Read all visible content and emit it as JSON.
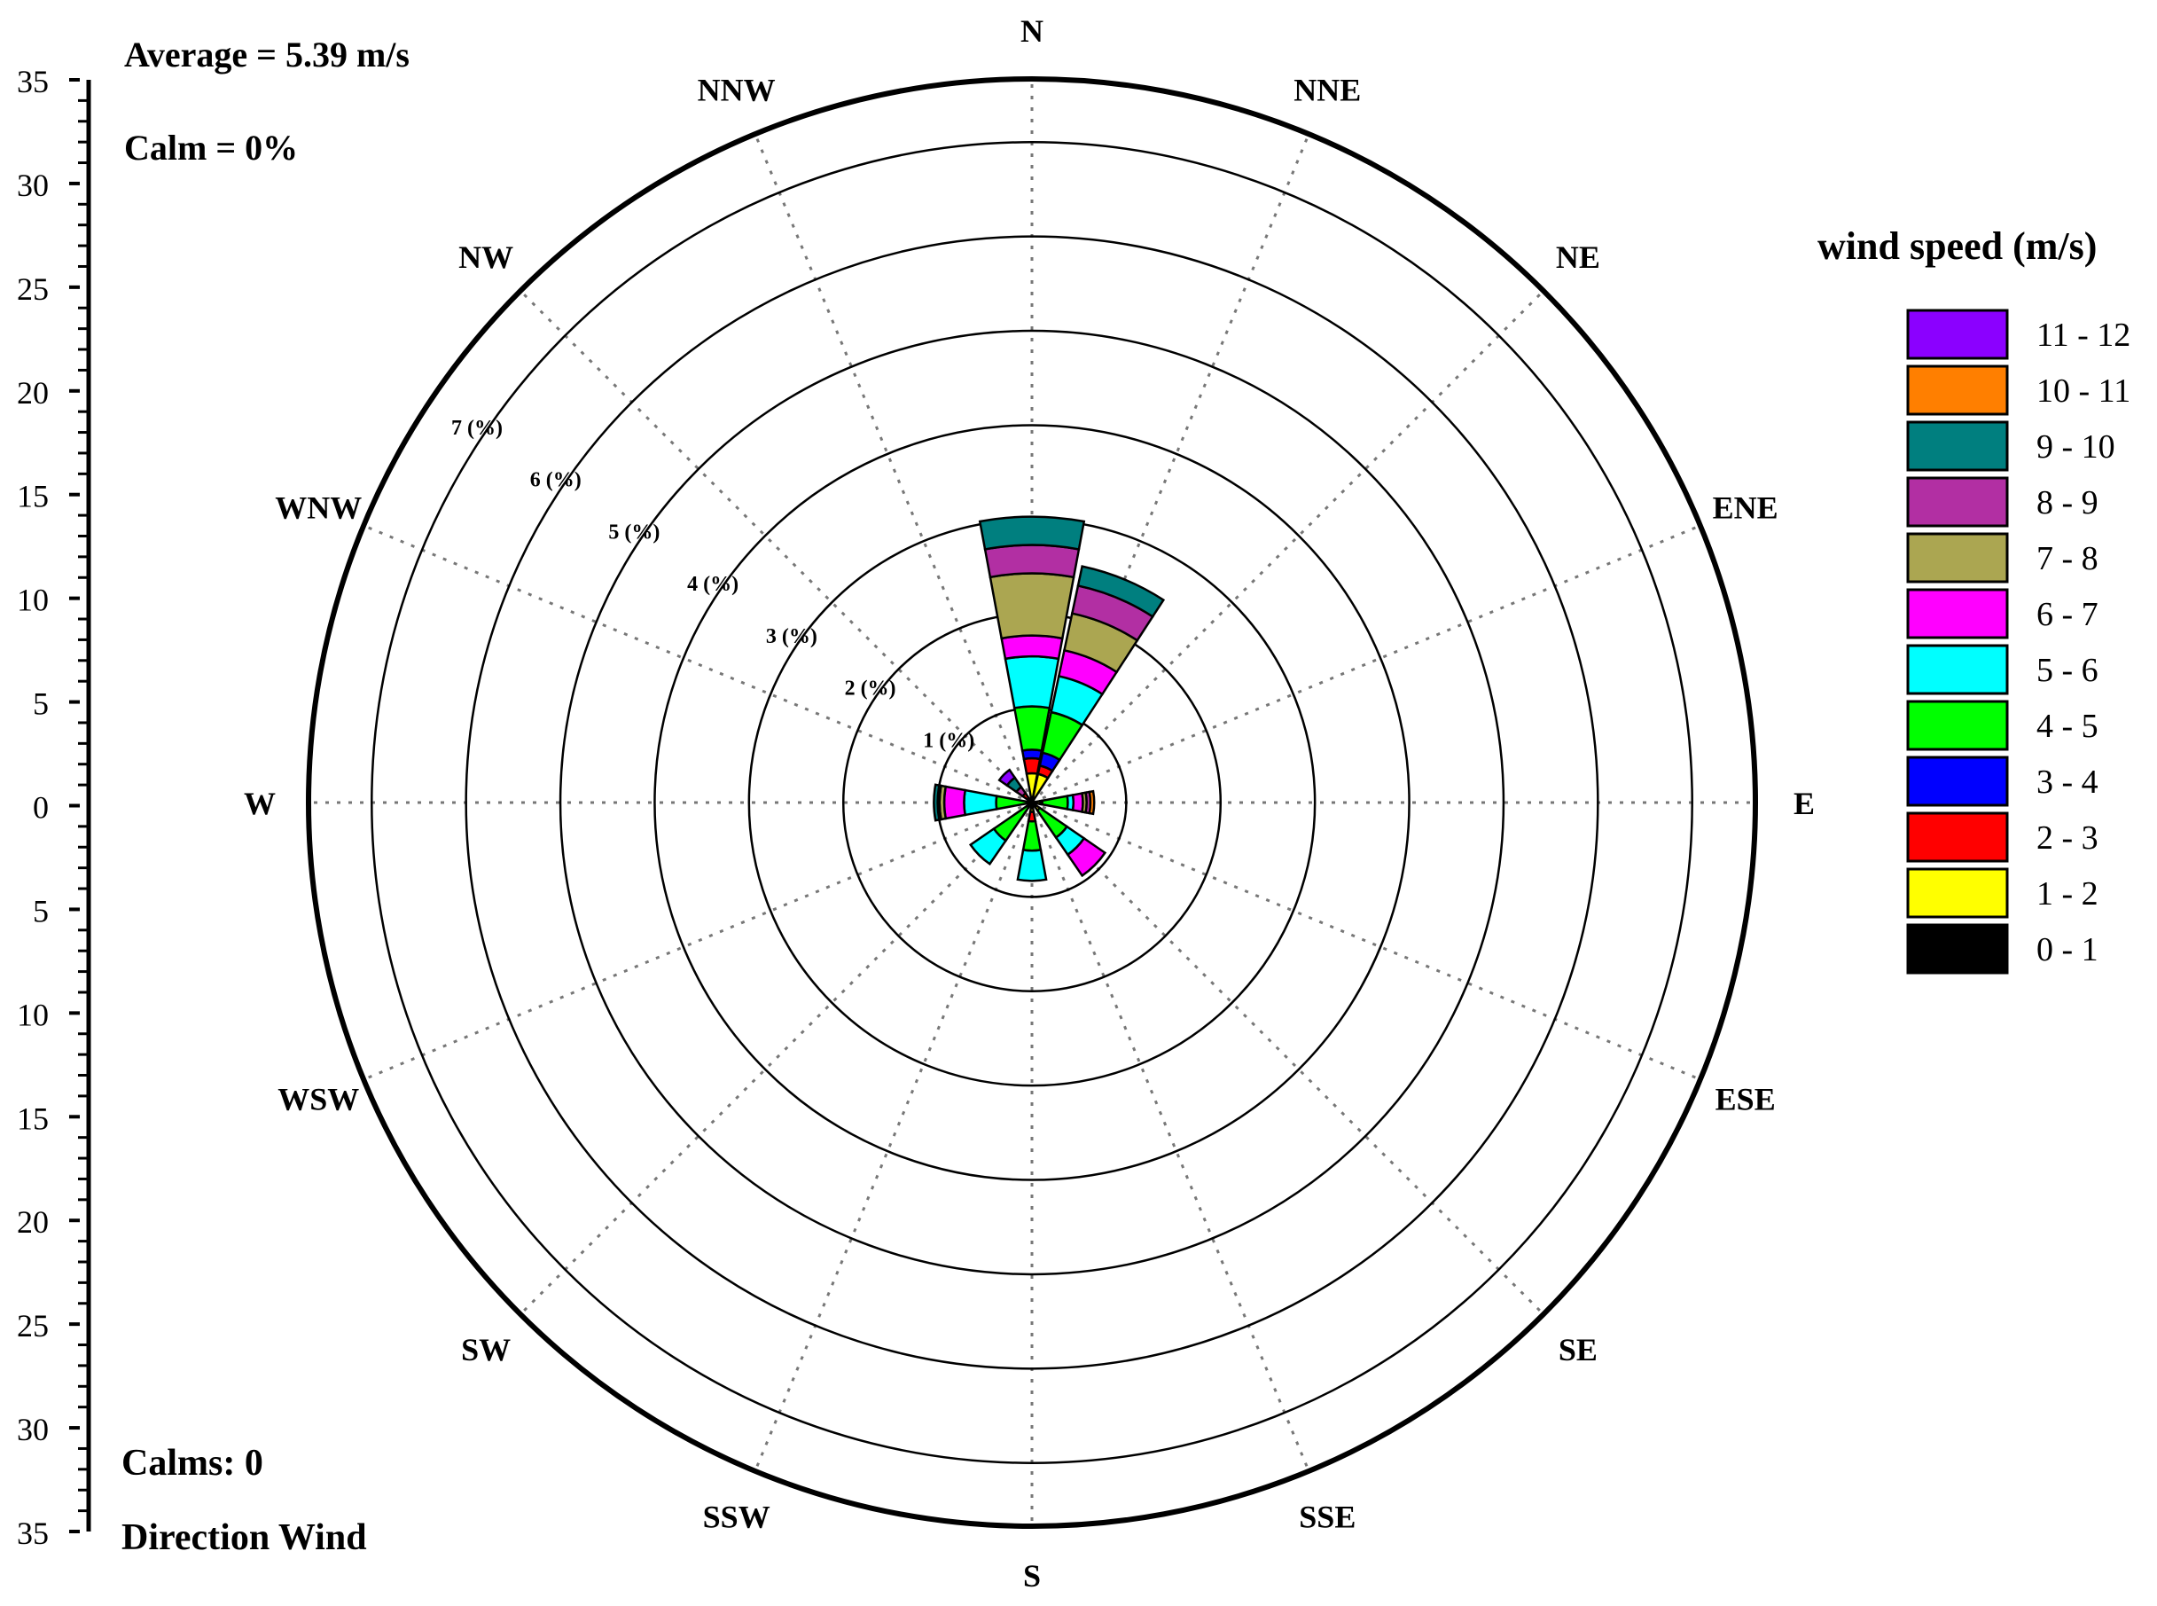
{
  "chart_data": {
    "type": "windrose",
    "info": {
      "average": "Average = 5.39 m/s",
      "calm": "Calm = 0%",
      "calms": "Calms: 0",
      "direction_label": "Direction Wind"
    },
    "directions": [
      "N",
      "NNE",
      "NE",
      "ENE",
      "E",
      "ESE",
      "SE",
      "SSE",
      "S",
      "SSW",
      "SW",
      "WSW",
      "W",
      "WNW",
      "NW",
      "NNW"
    ],
    "rings": [
      1,
      2,
      3,
      4,
      5,
      6,
      7
    ],
    "ring_labels": [
      "1 (%)",
      "2 (%)",
      "3 (%)",
      "4 (%)",
      "5 (%)",
      "6 (%)",
      "7 (%)"
    ],
    "r_max": 7.67,
    "left_axis": {
      "ticks": [
        35,
        30,
        25,
        20,
        15,
        10,
        5,
        0,
        5,
        10,
        15,
        20,
        25,
        30,
        35
      ]
    },
    "legend": {
      "title": "wind speed (m/s)",
      "bins": [
        {
          "label": "11 - 12",
          "color": "#8B00FF"
        },
        {
          "label": "10 - 11",
          "color": "#FF7F00"
        },
        {
          "label": "9 - 10",
          "color": "#007F7F"
        },
        {
          "label": "8 - 9",
          "color": "#B22FA3"
        },
        {
          "label": "7 - 8",
          "color": "#ABA651"
        },
        {
          "label": "6 - 7",
          "color": "#FF00FF"
        },
        {
          "label": "5 - 6",
          "color": "#00FFFF"
        },
        {
          "label": "4 - 5",
          "color": "#00FF00"
        },
        {
          "label": "3 - 4",
          "color": "#0000FF"
        },
        {
          "label": "2 - 3",
          "color": "#FF0000"
        },
        {
          "label": "1 - 2",
          "color": "#FFFF00"
        },
        {
          "label": "0 - 1",
          "color": "#000000"
        }
      ]
    },
    "series_order": [
      "0 - 1",
      "1 - 2",
      "2 - 3",
      "3 - 4",
      "4 - 5",
      "5 - 6",
      "6 - 7",
      "7 - 8",
      "8 - 9",
      "9 - 10",
      "10 - 11",
      "11 - 12"
    ],
    "cumulative_percent": {
      "N": [
        0.0,
        0.31,
        0.47,
        0.56,
        1.02,
        1.55,
        1.77,
        2.43,
        2.73,
        3.03,
        3.03,
        3.03
      ],
      "NNE": [
        0.0,
        0.31,
        0.4,
        0.54,
        0.98,
        1.37,
        1.65,
        2.05,
        2.35,
        2.56,
        2.56,
        2.56
      ],
      "NE": [
        0.0,
        0.0,
        0.0,
        0.0,
        0.0,
        0.0,
        0.0,
        0.0,
        0.0,
        0.0,
        0.0,
        0.0
      ],
      "ENE": [
        0.0,
        0.0,
        0.0,
        0.0,
        0.0,
        0.0,
        0.0,
        0.0,
        0.0,
        0.0,
        0.0,
        0.0
      ],
      "E": [
        0.0,
        0.09,
        0.09,
        0.11,
        0.38,
        0.44,
        0.54,
        0.58,
        0.62,
        0.62,
        0.66,
        0.66
      ],
      "ESE": [
        0.0,
        0.0,
        0.0,
        0.0,
        0.0,
        0.0,
        0.0,
        0.0,
        0.0,
        0.0,
        0.0,
        0.0
      ],
      "SE": [
        0.0,
        0.1,
        0.1,
        0.1,
        0.45,
        0.67,
        0.94,
        0.94,
        0.94,
        0.94,
        0.94,
        0.94
      ],
      "SSE": [
        0.0,
        0.0,
        0.0,
        0.0,
        0.0,
        0.0,
        0.0,
        0.0,
        0.0,
        0.0,
        0.0,
        0.0
      ],
      "S": [
        0.0,
        0.1,
        0.2,
        0.2,
        0.51,
        0.83,
        0.83,
        0.83,
        0.83,
        0.83,
        0.83,
        0.83
      ],
      "SSW": [
        0.0,
        0.0,
        0.0,
        0.0,
        0.0,
        0.0,
        0.0,
        0.0,
        0.0,
        0.0,
        0.0,
        0.0
      ],
      "SW": [
        0.0,
        0.06,
        0.06,
        0.06,
        0.49,
        0.79,
        0.79,
        0.79,
        0.79,
        0.79,
        0.79,
        0.79
      ],
      "WSW": [
        0.0,
        0.0,
        0.0,
        0.0,
        0.0,
        0.0,
        0.0,
        0.0,
        0.0,
        0.0,
        0.0,
        0.0
      ],
      "W": [
        0.0,
        0.0,
        0.0,
        0.0,
        0.38,
        0.72,
        0.93,
        0.98,
        1.0,
        1.04,
        1.04,
        1.04
      ],
      "WNW": [
        0.0,
        0.0,
        0.0,
        0.0,
        0.0,
        0.0,
        0.0,
        0.0,
        0.0,
        0.0,
        0.0,
        0.0
      ],
      "NW": [
        0.0,
        0.05,
        0.12,
        0.12,
        0.12,
        0.12,
        0.12,
        0.12,
        0.2,
        0.32,
        0.32,
        0.42
      ],
      "NNW": [
        0.0,
        0.0,
        0.0,
        0.0,
        0.0,
        0.0,
        0.0,
        0.0,
        0.0,
        0.0,
        0.0,
        0.0
      ]
    }
  }
}
